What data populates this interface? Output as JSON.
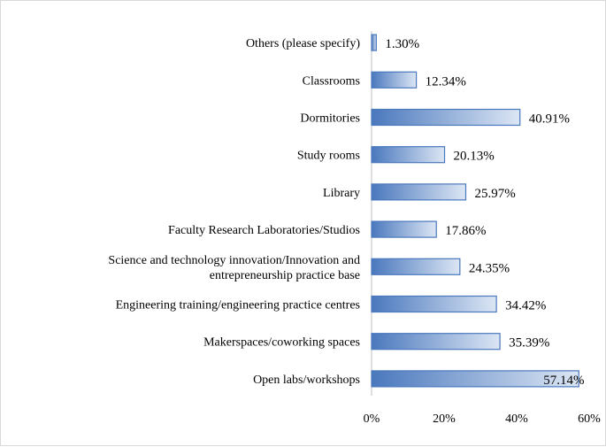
{
  "chart_data": {
    "type": "bar",
    "orientation": "horizontal",
    "categories": [
      "Others (please specify)",
      "Classrooms",
      "Dormitories",
      "Study rooms",
      "Library",
      "Faculty Research Laboratories/Studios",
      "Science and technology innovation/Innovation and entrepreneurship practice base",
      "Engineering training/engineering practice centres",
      "Makerspaces/coworking spaces",
      "Open labs/workshops"
    ],
    "values": [
      1.3,
      12.34,
      40.91,
      20.13,
      25.97,
      17.86,
      24.35,
      34.42,
      35.39,
      57.14
    ],
    "value_labels": [
      "1.30%",
      "12.34%",
      "40.91%",
      "20.13%",
      "25.97%",
      "17.86%",
      "24.35%",
      "34.42%",
      "35.39%",
      "57.14%"
    ],
    "xlim": [
      0,
      60
    ],
    "xticks": [
      "0%",
      "20%",
      "40%",
      "60%"
    ],
    "title": "",
    "xlabel": "",
    "ylabel": "",
    "grid": false,
    "legend": "none",
    "bar_color": "#4a78bd",
    "bar_gradient_end": "#dce6f4"
  }
}
